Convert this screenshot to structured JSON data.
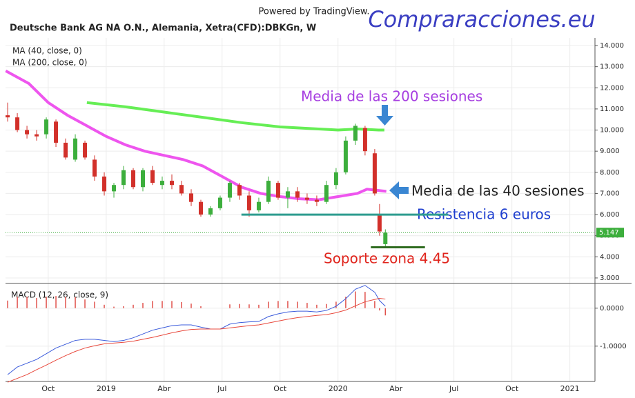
{
  "header": {
    "powered": "Powered by TradingView.",
    "symbol": "Deutsche Bank AG NA O.N., Alemania, Xetra(CFD):DBKGn, W",
    "brand": "Compraracciones.eu"
  },
  "chart_data": [
    {
      "type": "candlestick",
      "ma_labels": [
        "MA (40, close, 0)",
        "MA (200, close, 0)"
      ],
      "up_color": "#3cae3c",
      "down_color": "#d2302a",
      "x": [
        6.9,
        7.4,
        7.9,
        8.4,
        8.9,
        9.4,
        9.9,
        10.4,
        10.9,
        11.4,
        11.9,
        12.4,
        12.9,
        13.4,
        13.9,
        14.4,
        14.9,
        15.4,
        15.9,
        16.4,
        16.9,
        17.4,
        17.9,
        18.4,
        18.9,
        19.4,
        19.9,
        20.4,
        20.9,
        21.4,
        21.9,
        22.4,
        22.9,
        23.4,
        23.9,
        24.4,
        24.9,
        25.4,
        25.9,
        26.15,
        26.45
      ],
      "open": [
        10.7,
        10.6,
        10.0,
        9.8,
        9.8,
        10.4,
        9.4,
        8.6,
        9.4,
        8.6,
        7.8,
        7.1,
        7.4,
        8.1,
        7.3,
        8.1,
        7.4,
        7.6,
        7.4,
        7.0,
        6.6,
        6.0,
        6.3,
        6.8,
        7.4,
        6.9,
        6.2,
        6.6,
        7.5,
        6.8,
        7.1,
        6.8,
        6.7,
        6.6,
        7.4,
        8.0,
        9.5,
        10.1,
        8.9,
        6.0,
        4.6
      ],
      "high": [
        11.3,
        10.8,
        10.2,
        10.0,
        10.6,
        10.5,
        9.6,
        9.8,
        9.5,
        8.8,
        8.0,
        7.5,
        8.3,
        8.2,
        8.2,
        8.3,
        7.8,
        7.9,
        7.6,
        7.2,
        6.7,
        6.4,
        6.9,
        7.6,
        7.5,
        7.1,
        6.8,
        7.8,
        7.6,
        7.3,
        7.3,
        7.0,
        6.9,
        7.6,
        8.2,
        9.7,
        10.3,
        10.2,
        9.1,
        6.5,
        5.3
      ],
      "low": [
        10.4,
        9.9,
        9.6,
        9.5,
        9.6,
        9.2,
        8.6,
        8.5,
        8.6,
        7.6,
        6.9,
        6.8,
        7.2,
        7.2,
        7.1,
        7.4,
        7.2,
        7.2,
        6.9,
        6.4,
        5.9,
        5.9,
        6.2,
        6.6,
        6.7,
        5.9,
        6.1,
        6.5,
        6.7,
        6.3,
        6.6,
        6.5,
        6.4,
        6.5,
        7.2,
        7.9,
        9.3,
        8.8,
        6.9,
        5.0,
        4.45
      ],
      "close": [
        10.6,
        10.0,
        9.8,
        9.7,
        10.5,
        9.4,
        8.7,
        9.6,
        8.7,
        7.8,
        7.1,
        7.4,
        8.1,
        7.3,
        8.1,
        7.5,
        7.6,
        7.4,
        7.0,
        6.6,
        6.0,
        6.3,
        6.8,
        7.5,
        6.9,
        6.2,
        6.6,
        7.6,
        6.8,
        7.1,
        6.8,
        6.7,
        6.6,
        7.4,
        8.0,
        9.5,
        10.2,
        9.0,
        7.0,
        5.2,
        5.147
      ],
      "lines": [
        {
          "name": "Media de las 40 sesiones",
          "color": "#ee55ee",
          "x": [
            6.8,
            8,
            9,
            10,
            11,
            12,
            13,
            14,
            15,
            16,
            17,
            18,
            19,
            20,
            21,
            22,
            23,
            24,
            25,
            25.5,
            26,
            26.5
          ],
          "values": [
            12.8,
            12.2,
            11.3,
            10.7,
            10.2,
            9.7,
            9.3,
            9.0,
            8.8,
            8.6,
            8.3,
            7.8,
            7.3,
            7.0,
            6.85,
            6.75,
            6.7,
            6.85,
            7.0,
            7.2,
            7.15,
            7.1
          ]
        },
        {
          "name": "Media de las 200 sesiones",
          "color": "#66ee55",
          "x": [
            11,
            13,
            15,
            17,
            19,
            21,
            23,
            24,
            25,
            26.1,
            26.4
          ],
          "values": [
            11.3,
            11.1,
            10.85,
            10.6,
            10.35,
            10.15,
            10.05,
            10.0,
            10.05,
            10.0,
            10.0
          ]
        }
      ],
      "levels": [
        {
          "name": "Resistencia 6 euros",
          "color": "#2e9c8f",
          "value": 6,
          "x": [
            19.0,
            29.7
          ]
        },
        {
          "name": "Soporte zona 4.45",
          "color": "#2e6b1f",
          "value": 4.45,
          "x": [
            25.7,
            28.5
          ]
        }
      ],
      "last_value": 5.147,
      "xlim": [
        6.79,
        37.3
      ],
      "xticks": [
        {
          "value": 9,
          "label": "Oct"
        },
        {
          "value": 12,
          "label": "2019"
        },
        {
          "value": 15,
          "label": "Abr"
        },
        {
          "value": 18,
          "label": "Jul"
        },
        {
          "value": 21,
          "label": "Oct"
        },
        {
          "value": 24,
          "label": "2020"
        },
        {
          "value": 27,
          "label": "Abr"
        },
        {
          "value": 30,
          "label": "Jul"
        },
        {
          "value": 33,
          "label": "Oct"
        },
        {
          "value": 36,
          "label": "2021"
        }
      ],
      "ylim": [
        2.77,
        14.36
      ],
      "yticks": [
        {
          "value": 3,
          "label": "3.000"
        },
        {
          "value": 4,
          "label": "4.000"
        },
        {
          "value": 5,
          "label": "5.000"
        },
        {
          "value": 6,
          "label": "6.000"
        },
        {
          "value": 7,
          "label": "7.000"
        },
        {
          "value": 8,
          "label": "8.000"
        },
        {
          "value": 9,
          "label": "9.000"
        },
        {
          "value": 10,
          "label": "10.000"
        },
        {
          "value": 11,
          "label": "11.000"
        },
        {
          "value": 12,
          "label": "12.000"
        },
        {
          "value": 13,
          "label": "13.000"
        },
        {
          "value": 14,
          "label": "14.000"
        }
      ],
      "grid": true
    },
    {
      "type": "macd",
      "title": "MACD (12, 26, close, 9)",
      "x": [
        6.9,
        7.4,
        7.9,
        8.4,
        8.9,
        9.4,
        9.9,
        10.4,
        10.9,
        11.4,
        11.9,
        12.4,
        12.9,
        13.4,
        13.9,
        14.4,
        14.9,
        15.4,
        15.9,
        16.4,
        16.9,
        17.4,
        17.9,
        18.4,
        18.9,
        19.4,
        19.9,
        20.4,
        20.9,
        21.4,
        21.9,
        22.4,
        22.9,
        23.4,
        23.9,
        24.4,
        24.9,
        25.4,
        25.9,
        26.15,
        26.45
      ],
      "histogram": {
        "color": "#e0504a",
        "values": [
          0.2,
          0.3,
          0.3,
          0.27,
          0.3,
          0.32,
          0.3,
          0.29,
          0.23,
          0.17,
          0.09,
          0.04,
          0.05,
          0.09,
          0.14,
          0.19,
          0.19,
          0.19,
          0.16,
          0.12,
          0.05,
          0,
          0,
          0.1,
          0.11,
          0.1,
          0.09,
          0.17,
          0.19,
          0.19,
          0.17,
          0.14,
          0.09,
          0.11,
          0.17,
          0.3,
          0.44,
          0.43,
          0.19,
          -0.06,
          -0.19
        ]
      },
      "series": [
        {
          "color": "#3b5bdb",
          "values": [
            -1.75,
            -1.55,
            -1.45,
            -1.35,
            -1.2,
            -1.05,
            -0.95,
            -0.85,
            -0.82,
            -0.82,
            -0.85,
            -0.88,
            -0.85,
            -0.78,
            -0.68,
            -0.58,
            -0.52,
            -0.46,
            -0.44,
            -0.44,
            -0.5,
            -0.55,
            -0.55,
            -0.42,
            -0.38,
            -0.36,
            -0.35,
            -0.22,
            -0.15,
            -0.1,
            -0.08,
            -0.08,
            -0.1,
            -0.06,
            0.05,
            0.25,
            0.5,
            0.6,
            0.42,
            0.2,
            0.05
          ]
        },
        {
          "color": "#e8483c",
          "values": [
            -1.95,
            -1.85,
            -1.75,
            -1.62,
            -1.5,
            -1.37,
            -1.25,
            -1.14,
            -1.05,
            -0.99,
            -0.94,
            -0.92,
            -0.9,
            -0.87,
            -0.82,
            -0.77,
            -0.71,
            -0.65,
            -0.6,
            -0.56,
            -0.55,
            -0.55,
            -0.55,
            -0.52,
            -0.49,
            -0.46,
            -0.44,
            -0.39,
            -0.34,
            -0.29,
            -0.25,
            -0.22,
            -0.19,
            -0.17,
            -0.12,
            -0.05,
            0.06,
            0.17,
            0.23,
            0.26,
            0.24
          ]
        }
      ],
      "ylim": [
        -1.93,
        0.65
      ],
      "yticks": [
        {
          "value": 0,
          "label": "0.0000"
        },
        {
          "value": -1,
          "label": "-1.0000"
        }
      ]
    }
  ]
}
